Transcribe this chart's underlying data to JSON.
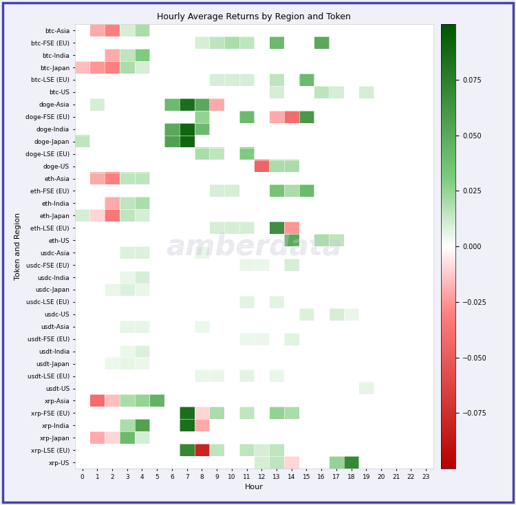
{
  "title": "Hourly Average Returns by Region and Token",
  "xlabel": "Hour",
  "ylabel": "Token and Region",
  "hours": [
    0,
    1,
    2,
    3,
    4,
    5,
    6,
    7,
    8,
    9,
    10,
    11,
    12,
    13,
    14,
    15,
    16,
    17,
    18,
    19,
    20,
    21,
    22,
    23
  ],
  "rows": [
    "btc-Asia",
    "btc-FSE (EU)",
    "btc-India",
    "btc-Japan",
    "btc-LSE (EU)",
    "btc-US",
    "doge-Asia",
    "doge-FSE (EU)",
    "doge-India",
    "doge-Japan",
    "doge-LSE (EU)",
    "doge-US",
    "eth-Asia",
    "eth-FSE (EU)",
    "eth-India",
    "eth-Japan",
    "eth-LSE (EU)",
    "eth-US",
    "usdc-Asia",
    "usdc-FSE (EU)",
    "usdc-India",
    "usdc-Japan",
    "usdc-LSE (EU)",
    "usdc-US",
    "usdt-Asia",
    "usdt-FSE (EU)",
    "usdt-India",
    "usdt-Japan",
    "usdt-LSE (EU)",
    "usdt-US",
    "xrp-Asia",
    "xrp-FSE (EU)",
    "xrp-India",
    "xrp-Japan",
    "xrp-LSE (EU)",
    "xrp-US"
  ],
  "data": {
    "btc-Asia": [
      null,
      -0.02,
      -0.03,
      0.01,
      0.02,
      null,
      null,
      null,
      null,
      null,
      null,
      null,
      null,
      null,
      null,
      null,
      null,
      null,
      null,
      null,
      null,
      null,
      null,
      null
    ],
    "btc-FSE (EU)": [
      null,
      null,
      null,
      null,
      null,
      null,
      null,
      null,
      0.01,
      0.015,
      0.02,
      0.015,
      null,
      0.04,
      null,
      null,
      0.05,
      null,
      null,
      null,
      null,
      null,
      null,
      null
    ],
    "btc-India": [
      null,
      null,
      -0.02,
      0.015,
      0.03,
      null,
      null,
      null,
      null,
      null,
      null,
      null,
      null,
      null,
      null,
      null,
      null,
      null,
      null,
      null,
      null,
      null,
      null,
      null
    ],
    "btc-Japan": [
      -0.015,
      -0.025,
      -0.03,
      0.02,
      0.01,
      null,
      null,
      null,
      null,
      null,
      null,
      null,
      null,
      null,
      null,
      null,
      null,
      null,
      null,
      null,
      null,
      null,
      null,
      null
    ],
    "btc-LSE (EU)": [
      null,
      null,
      null,
      null,
      null,
      null,
      null,
      null,
      null,
      0.01,
      0.01,
      0.01,
      null,
      0.015,
      null,
      0.04,
      null,
      null,
      null,
      null,
      null,
      null,
      null,
      null
    ],
    "btc-US": [
      null,
      null,
      null,
      null,
      null,
      null,
      null,
      null,
      null,
      null,
      null,
      null,
      null,
      0.01,
      null,
      null,
      0.015,
      0.01,
      null,
      0.01,
      null,
      null,
      null,
      null
    ],
    "doge-Asia": [
      null,
      0.01,
      null,
      null,
      null,
      null,
      0.04,
      0.085,
      0.05,
      -0.02,
      null,
      null,
      null,
      null,
      null,
      null,
      null,
      null,
      null,
      null,
      null,
      null,
      null,
      null
    ],
    "doge-FSE (EU)": [
      null,
      null,
      null,
      null,
      null,
      null,
      null,
      null,
      0.025,
      null,
      null,
      0.04,
      null,
      -0.02,
      -0.04,
      0.06,
      null,
      null,
      null,
      null,
      null,
      null,
      null,
      null
    ],
    "doge-India": [
      null,
      null,
      null,
      null,
      null,
      null,
      0.05,
      0.09,
      0.04,
      null,
      null,
      null,
      null,
      null,
      null,
      null,
      null,
      null,
      null,
      null,
      null,
      null,
      null,
      null
    ],
    "doge-Japan": [
      0.015,
      null,
      null,
      null,
      null,
      null,
      0.055,
      0.09,
      null,
      null,
      null,
      null,
      null,
      null,
      null,
      null,
      null,
      null,
      null,
      null,
      null,
      null,
      null,
      null
    ],
    "doge-LSE (EU)": [
      null,
      null,
      null,
      null,
      null,
      null,
      null,
      null,
      0.02,
      0.015,
      null,
      0.03,
      null,
      null,
      null,
      null,
      null,
      null,
      null,
      null,
      null,
      null,
      null,
      null
    ],
    "doge-US": [
      null,
      null,
      null,
      null,
      null,
      null,
      null,
      null,
      null,
      null,
      null,
      null,
      -0.045,
      0.02,
      0.02,
      null,
      null,
      null,
      null,
      null,
      null,
      null,
      null,
      null
    ],
    "eth-Asia": [
      null,
      -0.02,
      -0.03,
      0.015,
      0.015,
      null,
      null,
      null,
      null,
      null,
      null,
      null,
      null,
      null,
      null,
      null,
      null,
      null,
      null,
      null,
      null,
      null,
      null,
      null
    ],
    "eth-FSE (EU)": [
      null,
      null,
      null,
      null,
      null,
      null,
      null,
      null,
      null,
      0.01,
      0.01,
      null,
      null,
      0.035,
      0.02,
      0.04,
      null,
      null,
      null,
      null,
      null,
      null,
      null,
      null
    ],
    "eth-India": [
      null,
      null,
      -0.02,
      0.015,
      0.02,
      null,
      null,
      null,
      null,
      null,
      null,
      null,
      null,
      null,
      null,
      null,
      null,
      null,
      null,
      null,
      null,
      null,
      null,
      null
    ],
    "eth-Japan": [
      0.01,
      -0.01,
      -0.035,
      0.015,
      0.01,
      null,
      null,
      null,
      null,
      null,
      null,
      null,
      null,
      null,
      null,
      null,
      null,
      null,
      null,
      null,
      null,
      null,
      null,
      null
    ],
    "eth-LSE (EU)": [
      null,
      null,
      null,
      null,
      null,
      null,
      null,
      null,
      null,
      0.01,
      0.01,
      0.01,
      null,
      0.065,
      -0.025,
      null,
      null,
      null,
      null,
      null,
      null,
      null,
      null,
      null
    ],
    "eth-US": [
      null,
      null,
      null,
      null,
      null,
      null,
      null,
      null,
      null,
      null,
      null,
      null,
      null,
      null,
      0.05,
      null,
      0.02,
      0.015,
      null,
      null,
      null,
      null,
      null,
      null
    ],
    "usdc-Asia": [
      null,
      null,
      null,
      0.008,
      0.008,
      null,
      null,
      null,
      0.005,
      null,
      null,
      null,
      null,
      null,
      null,
      null,
      null,
      null,
      null,
      null,
      null,
      null,
      null,
      null
    ],
    "usdc-FSE (EU)": [
      null,
      null,
      null,
      null,
      null,
      null,
      null,
      null,
      null,
      null,
      null,
      0.005,
      0.005,
      null,
      0.01,
      null,
      null,
      null,
      null,
      null,
      null,
      null,
      null,
      null
    ],
    "usdc-India": [
      null,
      null,
      null,
      0.005,
      0.01,
      null,
      null,
      null,
      null,
      null,
      null,
      null,
      null,
      null,
      null,
      null,
      null,
      null,
      null,
      null,
      null,
      null,
      null,
      null
    ],
    "usdc-Japan": [
      null,
      null,
      0.005,
      0.008,
      0.005,
      null,
      null,
      null,
      null,
      null,
      null,
      null,
      null,
      null,
      null,
      null,
      null,
      null,
      null,
      null,
      null,
      null,
      null,
      null
    ],
    "usdc-LSE (EU)": [
      null,
      null,
      null,
      null,
      null,
      null,
      null,
      null,
      null,
      null,
      null,
      0.007,
      null,
      0.007,
      null,
      null,
      null,
      null,
      null,
      null,
      null,
      null,
      null,
      null
    ],
    "usdc-US": [
      null,
      null,
      null,
      null,
      null,
      null,
      null,
      null,
      null,
      null,
      null,
      null,
      null,
      null,
      null,
      0.008,
      null,
      0.01,
      0.005,
      null,
      null,
      null,
      null,
      null
    ],
    "usdt-Asia": [
      null,
      null,
      null,
      0.006,
      0.006,
      null,
      null,
      null,
      0.004,
      null,
      null,
      null,
      null,
      null,
      null,
      null,
      null,
      null,
      null,
      null,
      null,
      null,
      null,
      null
    ],
    "usdt-FSE (EU)": [
      null,
      null,
      null,
      null,
      null,
      null,
      null,
      null,
      null,
      null,
      null,
      0.004,
      0.004,
      null,
      0.007,
      null,
      null,
      null,
      null,
      null,
      null,
      null,
      null,
      null
    ],
    "usdt-India": [
      null,
      null,
      null,
      0.004,
      0.008,
      null,
      null,
      null,
      null,
      null,
      null,
      null,
      null,
      null,
      null,
      null,
      null,
      null,
      null,
      null,
      null,
      null,
      null,
      null
    ],
    "usdt-Japan": [
      null,
      null,
      0.004,
      0.006,
      0.004,
      null,
      null,
      null,
      null,
      null,
      null,
      null,
      null,
      null,
      null,
      null,
      null,
      null,
      null,
      null,
      null,
      null,
      null,
      null
    ],
    "usdt-LSE (EU)": [
      null,
      null,
      null,
      null,
      null,
      null,
      null,
      null,
      0.005,
      0.005,
      null,
      0.007,
      null,
      0.005,
      null,
      null,
      null,
      null,
      null,
      null,
      null,
      null,
      null,
      null
    ],
    "usdt-US": [
      null,
      null,
      null,
      null,
      null,
      null,
      null,
      null,
      null,
      null,
      null,
      null,
      null,
      null,
      null,
      null,
      null,
      null,
      null,
      0.006,
      null,
      null,
      null,
      null
    ],
    "xrp-Asia": [
      null,
      -0.04,
      -0.015,
      0.02,
      0.025,
      0.045,
      null,
      null,
      null,
      null,
      null,
      null,
      null,
      null,
      null,
      null,
      null,
      null,
      null,
      null,
      null,
      null,
      null,
      null
    ],
    "xrp-FSE (EU)": [
      null,
      null,
      null,
      null,
      null,
      null,
      null,
      0.085,
      -0.01,
      0.02,
      null,
      0.015,
      null,
      0.025,
      0.02,
      null,
      null,
      null,
      null,
      null,
      null,
      null,
      null,
      null
    ],
    "xrp-India": [
      null,
      null,
      null,
      0.02,
      0.055,
      null,
      null,
      0.085,
      -0.02,
      null,
      null,
      null,
      null,
      null,
      null,
      null,
      null,
      null,
      null,
      null,
      null,
      null,
      null,
      null
    ],
    "xrp-Japan": [
      null,
      -0.02,
      -0.01,
      0.04,
      0.01,
      null,
      null,
      null,
      null,
      null,
      null,
      null,
      null,
      null,
      null,
      null,
      null,
      null,
      null,
      null,
      null,
      null,
      null,
      null
    ],
    "xrp-LSE (EU)": [
      null,
      null,
      null,
      null,
      null,
      null,
      null,
      0.07,
      -0.08,
      0.015,
      null,
      0.015,
      0.01,
      0.015,
      null,
      null,
      null,
      null,
      null,
      null,
      null,
      null,
      null,
      null
    ],
    "xrp-US": [
      null,
      null,
      null,
      null,
      null,
      null,
      null,
      null,
      null,
      null,
      null,
      null,
      0.01,
      0.015,
      -0.01,
      null,
      null,
      0.025,
      0.07,
      null,
      null,
      null,
      null,
      null
    ]
  },
  "vmin": -0.1,
  "vmax": 0.1,
  "fig_bg": "#f0f0f8",
  "plot_bg": "#ffffff",
  "border_color": "#4444aa",
  "colorbar_ticks": [
    0.075,
    0.05,
    0.025,
    0.0,
    -0.025,
    -0.05,
    -0.075
  ]
}
